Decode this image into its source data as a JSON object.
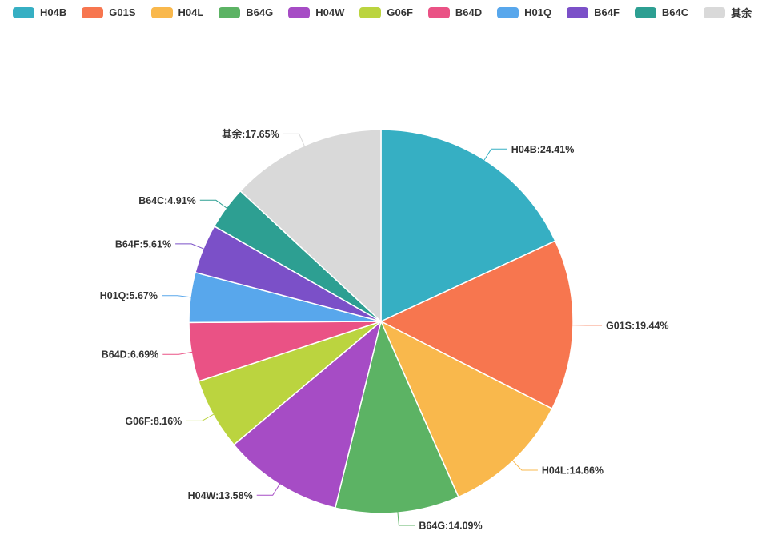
{
  "page": {
    "background": "#ffffff"
  },
  "legend": {
    "position": "top"
  },
  "chart_data": {
    "type": "pie",
    "title": "",
    "legend_position": "top",
    "label_format": "name:percent%",
    "start_angle_deg": 0,
    "direction": "clockwise",
    "slice_border_color": "#ffffff",
    "label_text_color": "#333333",
    "series": [
      {
        "name": "H04B",
        "percent": 24.41,
        "label": "H04B:24.41%",
        "color": "#36AFC3"
      },
      {
        "name": "G01S",
        "percent": 19.44,
        "label": "G01S:19.44%",
        "color": "#F7764F"
      },
      {
        "name": "H04L",
        "percent": 14.66,
        "label": "H04L:14.66%",
        "color": "#F9B84C"
      },
      {
        "name": "B64G",
        "percent": 14.09,
        "label": "B64G:14.09%",
        "color": "#5CB364"
      },
      {
        "name": "H04W",
        "percent": 13.58,
        "label": "H04W:13.58%",
        "color": "#A64CC5"
      },
      {
        "name": "G06F",
        "percent": 8.16,
        "label": "G06F:8.16%",
        "color": "#BBD43F"
      },
      {
        "name": "B64D",
        "percent": 6.69,
        "label": "B64D:6.69%",
        "color": "#EA5285"
      },
      {
        "name": "H01Q",
        "percent": 5.67,
        "label": "H01Q:5.67%",
        "color": "#58A7EC"
      },
      {
        "name": "B64F",
        "percent": 5.61,
        "label": "B64F:5.61%",
        "color": "#7B50C8"
      },
      {
        "name": "B64C",
        "percent": 4.91,
        "label": "B64C:4.91%",
        "color": "#2D9F92"
      },
      {
        "name": "其余",
        "percent": 17.65,
        "label": "其余:17.65%",
        "color": "#D9D9D9"
      }
    ]
  }
}
